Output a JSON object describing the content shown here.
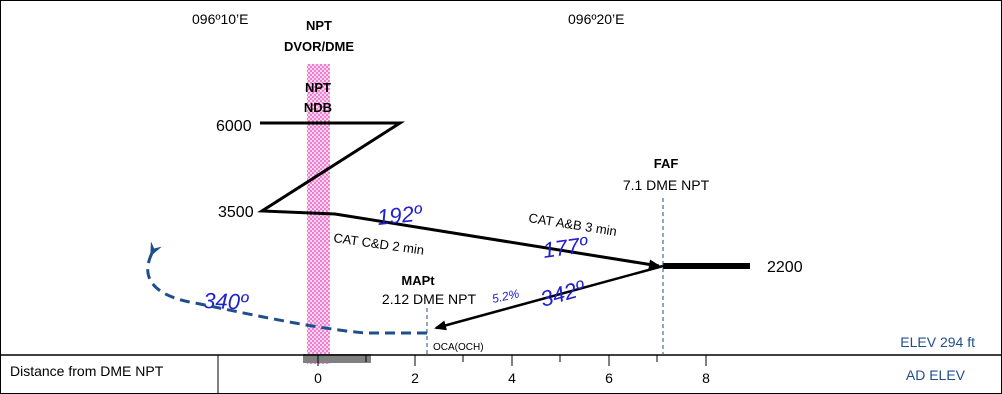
{
  "header": {
    "lon_left": "096º10’E",
    "lon_right": "096º20’E"
  },
  "navaids": {
    "dvor_line1": "NPT",
    "dvor_line2": "DVOR/DME",
    "ndb_line1": "NPT",
    "ndb_line2": "NDB"
  },
  "altitudes": {
    "upper": "6000",
    "middle": "3500",
    "faf": "2200"
  },
  "faf": {
    "title": "FAF",
    "distance": "7.1 DME NPT"
  },
  "mapt": {
    "title": "MAPt",
    "distance": "2.12 DME NPT",
    "oca": "OCA(OCH)"
  },
  "tracks": {
    "outbound": "192º",
    "inbound": "177º",
    "missed_climb": "342º",
    "missed_turn": "340º"
  },
  "timing": {
    "cat_cd": "CAT C&D 2 min",
    "cat_ab": "CAT A&B 3 min"
  },
  "gradient": "5.2%",
  "elevation": {
    "elev": "ELEV 294 ft",
    "ad_elev": "AD ELEV"
  },
  "distance_scale": {
    "label": "Distance from DME NPT",
    "ticks": [
      "0",
      "2",
      "4",
      "6",
      "8"
    ]
  },
  "colors": {
    "navaid_band": "#ff66cc",
    "track_label": "#1f1fd0",
    "missed_path": "#1f4e8c",
    "elev_text": "#1f4e8c"
  }
}
